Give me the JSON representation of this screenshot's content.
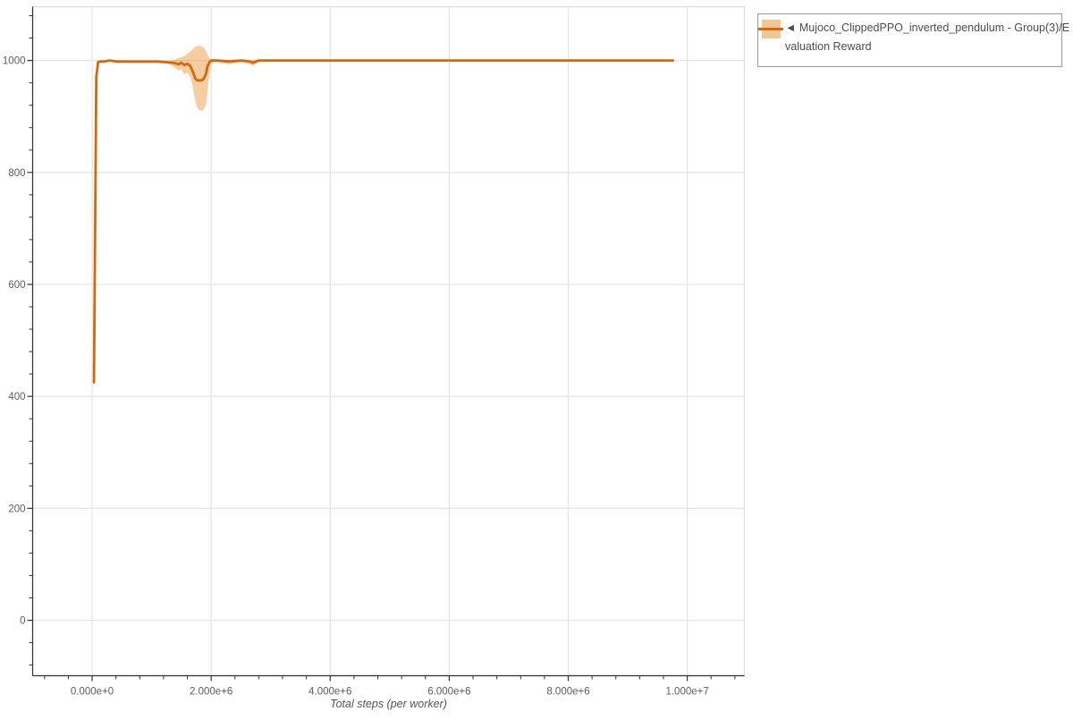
{
  "page": {
    "background": "#ffffff"
  },
  "legend": {
    "marker": "◄",
    "label": "Mujoco_ClippedPPO_inverted_pendulum - Group(3)/Evaluation Reward",
    "line1": "◄ Mujoco_ClippedPPO_inverted_pendulum - Group(3)/E",
    "line2": "valuation Reward",
    "border_color": "#9b9b9b",
    "swatch_band_color": "#f2c594",
    "swatch_line_color": "#d2690e"
  },
  "chart_data": {
    "type": "line",
    "title": "",
    "xlabel": "Total steps (per worker)",
    "ylabel": "",
    "xlim": [
      -1000000,
      10960000
    ],
    "ylim": [
      -99,
      1096
    ],
    "grid": true,
    "legend_position": "top-right-outside",
    "x_axis": {
      "tick_values": [
        0,
        2000000,
        4000000,
        6000000,
        8000000,
        10000000
      ],
      "tick_labels": [
        "0.000e+0",
        "2.000e+6",
        "4.000e+6",
        "6.000e+6",
        "8.000e+6",
        "1.000e+7"
      ],
      "minor_tick_step": 400000
    },
    "y_axis": {
      "tick_values": [
        0,
        200,
        400,
        600,
        800,
        1000
      ],
      "tick_labels": [
        "0",
        "200",
        "400",
        "600",
        "800",
        "1000"
      ],
      "minor_tick_step": 40
    },
    "series": [
      {
        "name": "Mujoco_ClippedPPO_inverted_pendulum - Group(3)/Evaluation Reward",
        "color": "#d2690e",
        "band_color": "#e8891f",
        "band_opacity": 0.42,
        "x": [
          30000,
          50000,
          70000,
          100000,
          150000,
          200000,
          300000,
          400000,
          500000,
          700000,
          900000,
          1100000,
          1250000,
          1350000,
          1400000,
          1450000,
          1500000,
          1550000,
          1600000,
          1650000,
          1700000,
          1730000,
          1760000,
          1800000,
          1850000,
          1880000,
          1910000,
          1940000,
          1970000,
          2000000,
          2050000,
          2100000,
          2200000,
          2300000,
          2400000,
          2500000,
          2600000,
          2650000,
          2700000,
          2750000,
          2800000,
          2900000,
          3000000,
          3500000,
          4000000,
          5000000,
          6000000,
          7000000,
          8000000,
          9000000,
          9760000
        ],
        "y": [
          425,
          700,
          970,
          997,
          998,
          998,
          1000,
          998,
          998,
          998,
          998,
          998,
          997,
          996,
          995,
          993,
          996,
          992,
          994,
          990,
          978,
          968,
          965,
          964,
          965,
          968,
          975,
          990,
          997,
          1000,
          1000,
          1000,
          999,
          998,
          999,
          1000,
          999,
          998,
          996,
          998,
          1000,
          1000,
          1000,
          1000,
          1000,
          1000,
          1000,
          1000,
          1000,
          1000,
          1000
        ],
        "band_lower": [
          418,
          690,
          958,
          994,
          996,
          996,
          999,
          996,
          996,
          996,
          996,
          996,
          994,
          990,
          986,
          982,
          984,
          975,
          978,
          970,
          948,
          930,
          917,
          911,
          910,
          913,
          920,
          945,
          975,
          994,
          997,
          997,
          995,
          993,
          995,
          997,
          995,
          993,
          990,
          993,
          997,
          999,
          1000,
          1000,
          1000,
          1000,
          1000,
          1000,
          1000,
          1000,
          1000
        ],
        "band_upper": [
          432,
          710,
          982,
          1000,
          1000,
          1000,
          1001,
          1000,
          1000,
          1000,
          1000,
          1000,
          999,
          1000,
          1002,
          1004,
          1006,
          1008,
          1012,
          1016,
          1021,
          1024,
          1026,
          1026,
          1025,
          1022,
          1018,
          1010,
          1004,
          1002,
          1002,
          1002,
          1001,
          1001,
          1001,
          1001,
          1001,
          1000,
          1000,
          1001,
          1001,
          1000,
          1000,
          1000,
          1000,
          1000,
          1000,
          1000,
          1000,
          1000,
          1000
        ]
      }
    ],
    "colors": {
      "gridline": "#e5e5e5",
      "outline": "#dddddd",
      "axis": "#333333",
      "tick_label": "#5c5c5c",
      "axis_title": "#555555"
    }
  }
}
